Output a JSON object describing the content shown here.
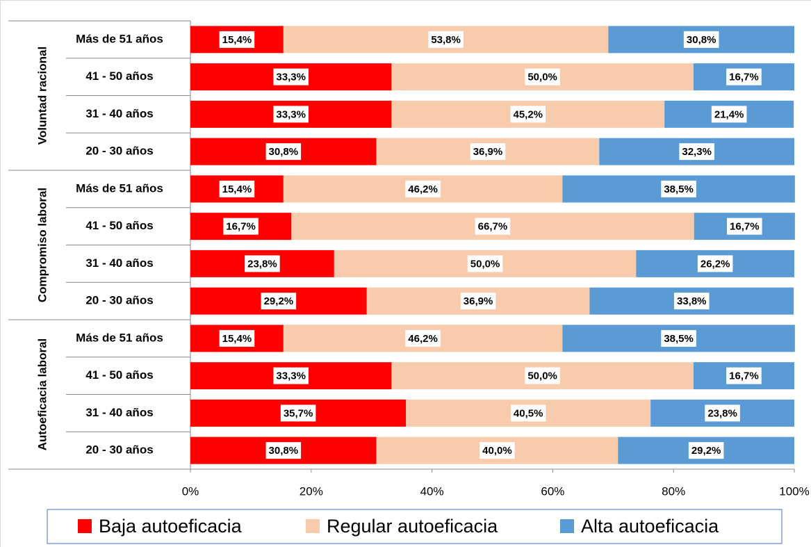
{
  "chart_data": {
    "type": "stacked-bar-horizontal",
    "groups": [
      {
        "name": "Voluntad racional",
        "categories": [
          "Más de 51 años",
          "41 - 50 años",
          "31 - 40 años",
          "20 - 30 años"
        ]
      },
      {
        "name": "Compromiso laboral",
        "categories": [
          "Más de 51 años",
          "41 - 50 años",
          "31 - 40 años",
          "20 - 30 años"
        ]
      },
      {
        "name": "Autoeficacia laboral",
        "categories": [
          "Más de 51 años",
          "41 - 50 años",
          "31 - 40 años",
          "20 - 30 años"
        ]
      }
    ],
    "series": [
      {
        "name": "Baja autoeficacia",
        "color": "#ff0000",
        "values": [
          15.4,
          33.3,
          33.3,
          30.8,
          15.4,
          16.7,
          23.8,
          29.2,
          15.4,
          33.3,
          35.7,
          30.8
        ],
        "value_labels": [
          "15,4%",
          "33,3%",
          "33,3%",
          "30,8%",
          "15,4%",
          "16,7%",
          "23,8%",
          "29,2%",
          "15,4%",
          "33,3%",
          "35,7%",
          "30,8%"
        ]
      },
      {
        "name": "Regular autoeficacia",
        "color": "#f8cbad",
        "values": [
          53.8,
          50.0,
          45.2,
          36.9,
          46.2,
          66.7,
          50.0,
          36.9,
          46.2,
          50.0,
          40.5,
          40.0
        ],
        "value_labels": [
          "53,8%",
          "50,0%",
          "45,2%",
          "36,9%",
          "46,2%",
          "66,7%",
          "50,0%",
          "36,9%",
          "46,2%",
          "50,0%",
          "40,5%",
          "40,0%"
        ]
      },
      {
        "name": "Alta autoeficacia",
        "color": "#5b9bd5",
        "values": [
          30.8,
          16.7,
          21.4,
          32.3,
          38.5,
          16.7,
          26.2,
          33.8,
          38.5,
          16.7,
          23.8,
          29.2
        ],
        "value_labels": [
          "30,8%",
          "16,7%",
          "21,4%",
          "32,3%",
          "38,5%",
          "16,7%",
          "26,2%",
          "33,8%",
          "38,5%",
          "16,7%",
          "23,8%",
          "29,2%"
        ]
      }
    ],
    "xlim": [
      0,
      100
    ],
    "xticks": [
      {
        "value": 0,
        "label": "0%"
      },
      {
        "value": 20,
        "label": "20%"
      },
      {
        "value": 40,
        "label": "40%"
      },
      {
        "value": 60,
        "label": "60%"
      },
      {
        "value": 80,
        "label": "80%"
      },
      {
        "value": 100,
        "label": "100%"
      }
    ],
    "legend": "bottom"
  }
}
